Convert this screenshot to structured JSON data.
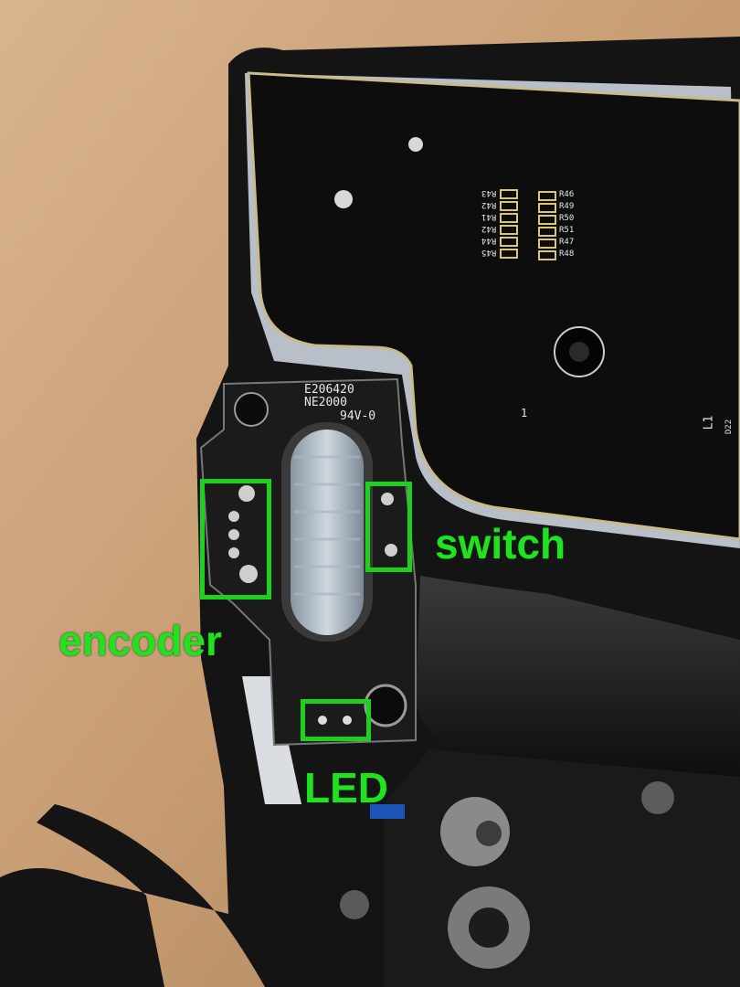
{
  "photo": {
    "pcb_markings": {
      "bracket_lines": [
        "E206420",
        "NE2000",
        "94V-0"
      ],
      "resistors_left": [
        "R43",
        "R42",
        "R41",
        "R42",
        "R44",
        "R45"
      ],
      "resistors_right": [
        "R46",
        "R49",
        "R50",
        "R51",
        "R47",
        "R48"
      ],
      "misc": [
        "1",
        "L1",
        "D22"
      ]
    }
  },
  "annotations": {
    "encoder": "encoder",
    "switch": "switch",
    "led": "LED",
    "color": "#1ed11e"
  }
}
